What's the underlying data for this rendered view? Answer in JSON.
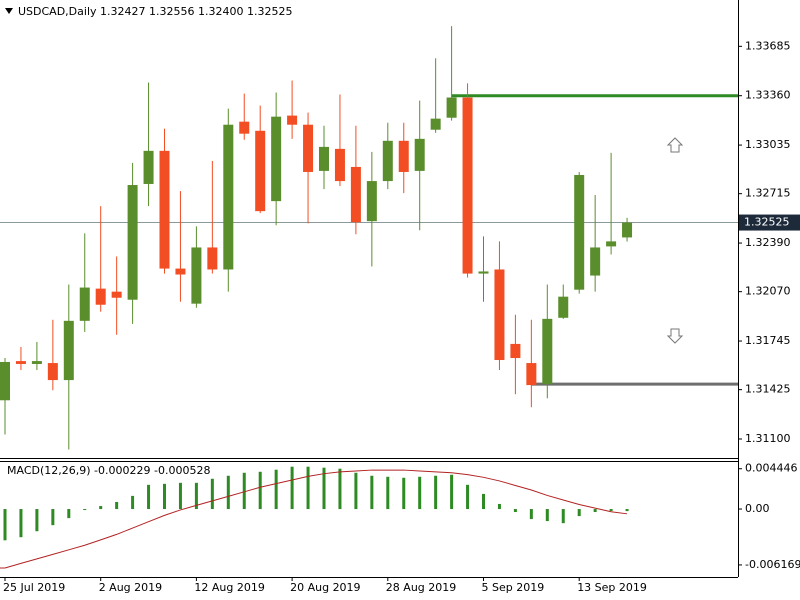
{
  "chart_data": [
    {
      "type": "candlestick",
      "title": "USDCAD,Daily  1.32427  1.32556  1.32400  1.32525",
      "categories": [
        "25 Jul 2019",
        null,
        null,
        null,
        null,
        null,
        "2 Aug 2019",
        null,
        null,
        null,
        null,
        null,
        "12 Aug 2019",
        null,
        null,
        null,
        null,
        null,
        "20 Aug 2019",
        null,
        null,
        null,
        null,
        null,
        "28 Aug 2019",
        null,
        null,
        null,
        null,
        null,
        "5 Sep 2019",
        null,
        null,
        null,
        null,
        null,
        "13 Sep 2019",
        null,
        null,
        null
      ],
      "open": [
        1.31355,
        1.31613,
        1.31594,
        1.316,
        1.31488,
        1.31878,
        1.3209,
        1.3207,
        1.32017,
        1.32779,
        1.32997,
        1.32222,
        1.31991,
        1.32361,
        1.32216,
        1.33189,
        1.33129,
        1.32666,
        1.33229,
        1.33169,
        1.32865,
        1.3301,
        1.32891,
        1.32534,
        1.32798,
        1.33063,
        1.32865,
        1.33136,
        1.33215,
        1.33348,
        1.32189,
        1.32216,
        1.31726,
        1.316,
        1.31461,
        1.31898,
        1.32083,
        1.32176,
        1.32368,
        1.32427
      ],
      "high": [
        1.31633,
        1.31706,
        1.31739,
        1.31885,
        1.32117,
        1.32454,
        1.32633,
        1.32302,
        1.32918,
        1.33447,
        1.33143,
        1.32732,
        1.325,
        1.32931,
        1.33275,
        1.33374,
        1.33295,
        1.33381,
        1.3346,
        1.33249,
        1.33162,
        1.33368,
        1.33162,
        1.3299,
        1.33182,
        1.33182,
        1.33328,
        1.33606,
        1.33818,
        1.33441,
        1.32434,
        1.32401,
        1.31918,
        1.31885,
        1.32117,
        1.32117,
        1.32858,
        1.32706,
        1.32984,
        1.32556
      ],
      "low": [
        1.3113,
        1.31554,
        1.31554,
        1.31421,
        1.31031,
        1.31805,
        1.31938,
        1.31786,
        1.31858,
        1.32633,
        1.32189,
        1.32004,
        1.31964,
        1.32189,
        1.3207,
        1.3307,
        1.32587,
        1.32507,
        1.33076,
        1.3252,
        1.32745,
        1.32765,
        1.32448,
        1.32236,
        1.32745,
        1.32719,
        1.32474,
        1.33116,
        1.33196,
        1.32163,
        1.32004,
        1.31554,
        1.31395,
        1.31309,
        1.31368,
        1.31891,
        1.32057,
        1.3207,
        1.32315,
        1.324
      ],
      "close": [
        1.31607,
        1.31594,
        1.31613,
        1.31488,
        1.31878,
        1.32097,
        1.31984,
        1.3203,
        1.32772,
        1.32997,
        1.32222,
        1.32183,
        1.32361,
        1.32216,
        1.33169,
        1.3311,
        1.326,
        1.33222,
        1.33169,
        1.32858,
        1.33023,
        1.32798,
        1.32527,
        1.32798,
        1.33063,
        1.32858,
        1.33076,
        1.33209,
        1.33348,
        1.32189,
        1.32203,
        1.3162,
        1.31633,
        1.31455,
        1.31891,
        1.32037,
        1.32838,
        1.32361,
        1.32401,
        1.32525
      ],
      "up_color": "#5a8d2c",
      "down_color": "#f24d23",
      "ylim": [
        1.30975,
        1.3399
      ],
      "yticks": [
        1.31425,
        {
          "value": 1.311,
          "label": "1.31100"
        },
        1.31745,
        {
          "value": 1.3207,
          "label": "1.32070"
        },
        {
          "value": 1.3239,
          "label": "1.32390"
        },
        1.32715,
        1.33035,
        {
          "value": 1.3336,
          "label": "1.33360"
        },
        1.33685
      ],
      "last_price": 1.32525,
      "levels": [
        {
          "value": 1.3336,
          "color": "#2e8a23"
        },
        {
          "value": 1.31461,
          "color": "#6e6e6e"
        }
      ]
    },
    {
      "type": "macd",
      "title": "MACD(12,26,9) -0.000229 -0.000528",
      "ylim": [
        -0.0075,
        0.0053
      ],
      "yticks": [
        0.004446,
        {
          "value": 0,
          "label": "0.00"
        },
        -0.006169
      ],
      "series": [
        {
          "name": "MACD",
          "color": "#2e8a23",
          "values": [
            -0.00345,
            -0.00311,
            -0.00245,
            -0.00178,
            -0.001,
            -0.00011,
            0.00033,
            0.00078,
            0.00145,
            0.00267,
            0.00278,
            0.00289,
            0.00289,
            0.00334,
            0.00367,
            0.004,
            0.00411,
            0.00434,
            0.00467,
            0.00467,
            0.00456,
            0.00445,
            0.004,
            0.00367,
            0.00356,
            0.00345,
            0.00356,
            0.00367,
            0.00378,
            0.00267,
            0.00167,
            0.00056,
            -0.00033,
            -0.00111,
            -0.00133,
            -0.00156,
            -0.00078,
            -0.00033,
            -0.00022,
            -0.000229
          ]
        },
        {
          "name": "Signal",
          "color": "#b22222",
          "values": [
            -0.0065,
            -0.006,
            -0.0055,
            -0.005,
            -0.0045,
            -0.004,
            -0.0034,
            -0.0028,
            -0.0021,
            -0.0014,
            -0.0007,
            -0.0001,
            0.0004,
            0.0009,
            0.0014,
            0.0019,
            0.0024,
            0.0028,
            0.0032,
            0.0036,
            0.0039,
            0.0041,
            0.0042,
            0.0043,
            0.0043,
            0.0043,
            0.0042,
            0.0041,
            0.004,
            0.0038,
            0.0035,
            0.0031,
            0.0026,
            0.0021,
            0.0015,
            0.001,
            0.0005,
            0.0001,
            -0.0003,
            -0.000528
          ]
        }
      ]
    }
  ]
}
